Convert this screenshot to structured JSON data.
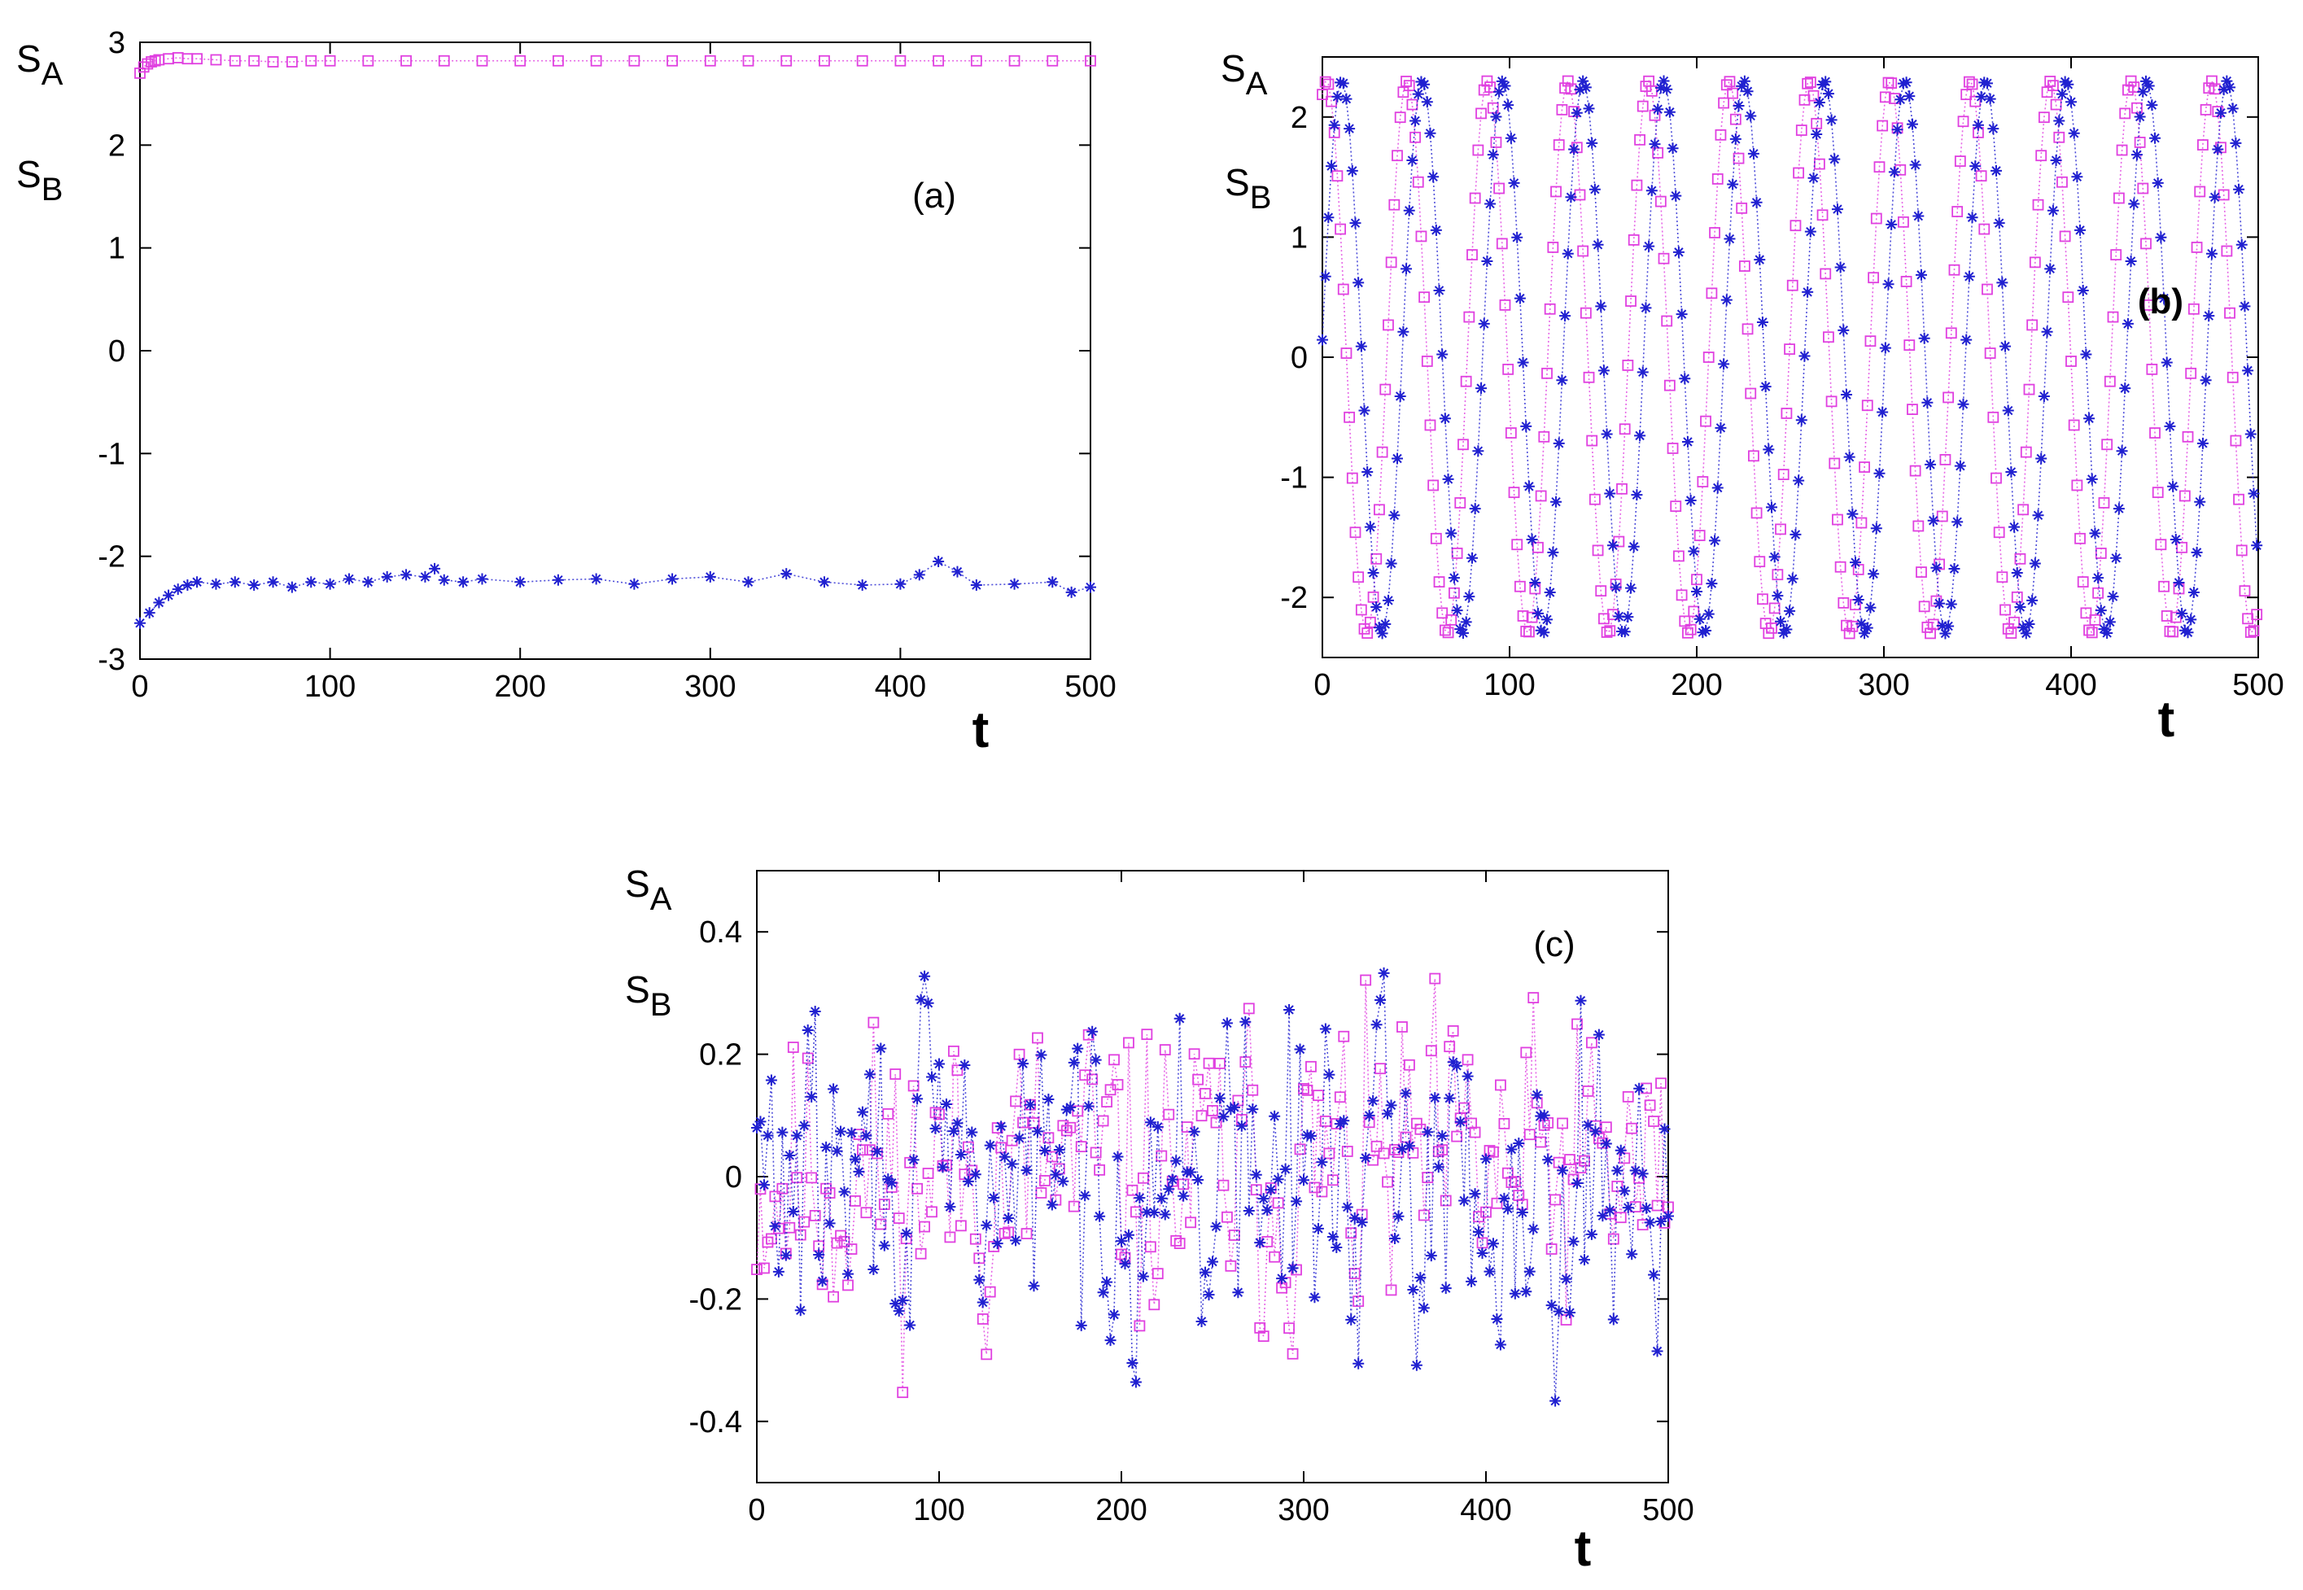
{
  "chart_data": [
    {
      "type": "scatter",
      "panel_label": "(a)",
      "panel_label_bold": false,
      "xlabel": "t",
      "ylabel_lines": [
        "A",
        "B"
      ],
      "ylabel_prefix": "S",
      "xlim": [
        0,
        500
      ],
      "ylim": [
        -3,
        3
      ],
      "xticks": [
        0,
        100,
        200,
        300,
        400,
        500
      ],
      "xtick_labels": [
        "0",
        "100",
        "200",
        "300",
        "400",
        "500"
      ],
      "yticks": [
        -3,
        -2,
        -1,
        0,
        1,
        2,
        3
      ],
      "ytick_labels": [
        "-3",
        "-2",
        "-1",
        "0",
        "1",
        "2",
        "3"
      ],
      "grid": false,
      "series": [
        {
          "name": "S_A",
          "marker": "square",
          "color": "#e040e0",
          "x": [
            0,
            2,
            4,
            6,
            8,
            10,
            15,
            20,
            25,
            30,
            40,
            50,
            60,
            70,
            80,
            90,
            100,
            120,
            140,
            160,
            180,
            200,
            220,
            240,
            260,
            280,
            300,
            320,
            340,
            360,
            380,
            400,
            420,
            440,
            460,
            480,
            500
          ],
          "y": [
            2.7,
            2.76,
            2.79,
            2.81,
            2.82,
            2.83,
            2.84,
            2.85,
            2.84,
            2.84,
            2.83,
            2.82,
            2.82,
            2.81,
            2.81,
            2.82,
            2.82,
            2.82,
            2.82,
            2.82,
            2.82,
            2.82,
            2.82,
            2.82,
            2.82,
            2.82,
            2.82,
            2.82,
            2.82,
            2.82,
            2.82,
            2.82,
            2.82,
            2.82,
            2.82,
            2.82,
            2.82
          ]
        },
        {
          "name": "S_B",
          "marker": "star",
          "color": "#2020d0",
          "x": [
            0,
            5,
            10,
            15,
            20,
            25,
            30,
            40,
            50,
            60,
            70,
            80,
            90,
            100,
            110,
            120,
            130,
            140,
            150,
            155,
            160,
            170,
            180,
            200,
            220,
            240,
            260,
            280,
            300,
            320,
            340,
            360,
            380,
            400,
            410,
            420,
            430,
            440,
            460,
            480,
            490,
            500
          ],
          "y": [
            -2.65,
            -2.55,
            -2.45,
            -2.38,
            -2.32,
            -2.28,
            -2.25,
            -2.27,
            -2.25,
            -2.28,
            -2.25,
            -2.3,
            -2.25,
            -2.27,
            -2.22,
            -2.25,
            -2.2,
            -2.18,
            -2.2,
            -2.12,
            -2.23,
            -2.25,
            -2.22,
            -2.25,
            -2.23,
            -2.22,
            -2.27,
            -2.22,
            -2.2,
            -2.25,
            -2.17,
            -2.25,
            -2.28,
            -2.27,
            -2.18,
            -2.05,
            -2.15,
            -2.28,
            -2.27,
            -2.25,
            -2.35,
            -2.3
          ]
        }
      ]
    },
    {
      "type": "scatter",
      "panel_label": "(b)",
      "panel_label_bold": true,
      "xlabel": "t",
      "ylabel_lines": [
        "A",
        "B"
      ],
      "ylabel_prefix": "S",
      "xlim": [
        0,
        500
      ],
      "ylim": [
        -2.5,
        2.5
      ],
      "xticks": [
        0,
        100,
        200,
        300,
        400,
        500
      ],
      "xtick_labels": [
        "0",
        "100",
        "200",
        "300",
        "400",
        "500"
      ],
      "yticks": [
        -2,
        -1,
        0,
        1,
        2
      ],
      "ytick_labels": [
        "-2",
        "-1",
        "0",
        "1",
        "2"
      ],
      "grid": false,
      "series": [
        {
          "name": "S_A",
          "marker": "square",
          "color": "#e040e0",
          "period": 43,
          "amplitude": 2.3,
          "phase": 0.05,
          "x_step": 1.6
        },
        {
          "name": "S_B",
          "marker": "star",
          "color": "#2020d0",
          "period": 43,
          "amplitude": 2.3,
          "phase": 0.24,
          "x_step": 1.6
        }
      ]
    },
    {
      "type": "scatter",
      "panel_label": "(c)",
      "panel_label_bold": false,
      "xlabel": "t",
      "ylabel_lines": [
        "A",
        "B"
      ],
      "ylabel_prefix": "S",
      "xlim": [
        0,
        500
      ],
      "ylim": [
        -0.5,
        0.5
      ],
      "xticks": [
        0,
        100,
        200,
        300,
        400,
        500
      ],
      "xtick_labels": [
        "0",
        "100",
        "200",
        "300",
        "400",
        "500"
      ],
      "yticks": [
        -0.4,
        -0.2,
        0,
        0.2,
        0.4
      ],
      "ytick_labels": [
        "-0.4",
        "-0.2",
        "0",
        "0.2",
        "0.4"
      ],
      "grid": false,
      "series": [
        {
          "name": "S_A",
          "marker": "square",
          "color": "#e040e0",
          "noise_amplitude": 0.12,
          "x_step": 2,
          "seed": 11
        },
        {
          "name": "S_B",
          "marker": "star",
          "color": "#2020d0",
          "noise_amplitude": 0.12,
          "x_step": 2,
          "seed": 29
        }
      ]
    }
  ]
}
